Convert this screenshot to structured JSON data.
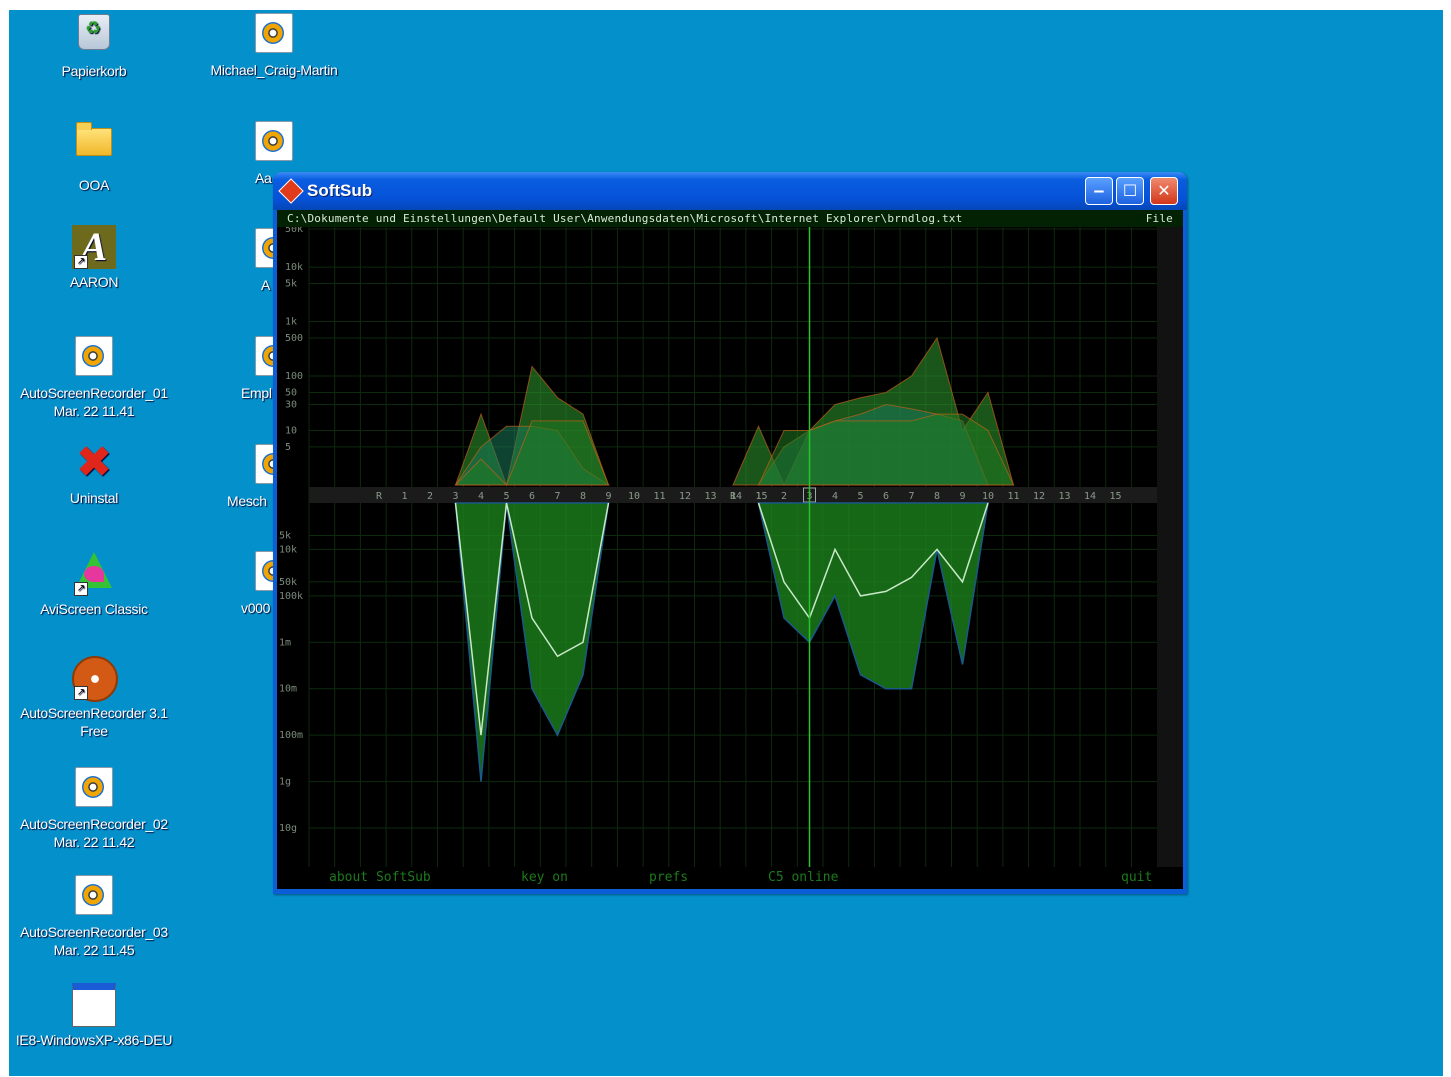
{
  "desktop": {
    "background": "#0490ca",
    "icons": [
      {
        "label": "Papierkorb",
        "icon": "recycle-bin-icon"
      },
      {
        "label": "OOA",
        "icon": "folder-icon"
      },
      {
        "label": "AARON",
        "icon": "aaron-icon"
      },
      {
        "label": "AutoScreenRecorder_01\nMar. 22 11.41",
        "icon": "media-file-icon"
      },
      {
        "label": "Uninstal",
        "icon": "uninstall-icon"
      },
      {
        "label": "AviScreen Classic",
        "icon": "aviscreen-icon"
      },
      {
        "label": "AutoScreenRecorder 3.1\nFree",
        "icon": "film-reel-icon"
      },
      {
        "label": "AutoScreenRecorder_02\nMar. 22 11.42",
        "icon": "media-file-icon"
      },
      {
        "label": "AutoScreenRecorder_03\nMar. 22 11.45",
        "icon": "media-file-icon"
      },
      {
        "label": "IE8-WindowsXP-x86-DEU",
        "icon": "application-icon"
      },
      {
        "label": "Michael_Craig-Martin",
        "icon": "media-file-icon"
      },
      {
        "label": "Aa",
        "icon": "media-file-icon"
      },
      {
        "label": "A",
        "icon": "media-file-icon"
      },
      {
        "label": "Empl",
        "icon": "media-file-icon"
      },
      {
        "label": "Mesch",
        "icon": "media-file-icon"
      },
      {
        "label": "v000",
        "icon": "media-file-icon"
      }
    ]
  },
  "window": {
    "title": "SoftSub",
    "minimize": "‒",
    "maximize": "☐",
    "close": "✕",
    "path": "C:\\Dokumente und Einstellungen\\Default User\\Anwendungsdaten\\Microsoft\\Internet Explorer\\brndlog.txt",
    "path_suffix": "File",
    "bottom": {
      "about": "about SoftSub",
      "key": "key on",
      "prefs": "prefs",
      "status": "C5 online",
      "quit": "quit"
    }
  },
  "chart_data": {
    "type": "area",
    "upper_axis_ticks": [
      "50k",
      "10k",
      "5k",
      "1k",
      "500",
      "100",
      "50",
      "30",
      "10",
      "5"
    ],
    "lower_axis_ticks": [
      "5k",
      "10k",
      "50k",
      "100k",
      "1m",
      "10m",
      "100m",
      "1g",
      "10g"
    ],
    "panels": [
      {
        "channel_labels": [
          "R",
          "1",
          "2",
          "3",
          "4",
          "5",
          "6",
          "7",
          "8",
          "9",
          "10",
          "11",
          "12",
          "13",
          "14",
          "15"
        ],
        "upper_series": [
          {
            "color": "#2f9a2f",
            "values": [
              0,
              0,
              0,
              0,
              20,
              0,
              150,
              40,
              20,
              0,
              0,
              0,
              0,
              0,
              0,
              0
            ]
          },
          {
            "color": "#1a7a5a",
            "values": [
              0,
              0,
              0,
              0,
              5,
              12,
              12,
              10,
              2,
              0,
              0,
              0,
              0,
              0,
              0,
              0
            ]
          },
          {
            "color": "#207a20",
            "values": [
              0,
              0,
              0,
              0,
              3,
              0,
              15,
              15,
              15,
              0,
              0,
              0,
              0,
              0,
              0,
              0
            ]
          }
        ],
        "lower_series": [
          {
            "color": "#1a5a8a",
            "values": [
              0,
              0,
              0,
              0,
              1000000000,
              0,
              10000000,
              100000000,
              5000000,
              0,
              0,
              0,
              0,
              0,
              0,
              0
            ]
          },
          {
            "color": "#c8e8c8",
            "values": [
              0,
              0,
              0,
              0,
              100000000,
              0,
              300000,
              2000000,
              1000000,
              0,
              0,
              0,
              0,
              0,
              0,
              0
            ]
          }
        ]
      },
      {
        "channel_labels": [
          "R",
          "1",
          "2",
          "3",
          "4",
          "5",
          "6",
          "7",
          "8",
          "9",
          "10",
          "11",
          "12",
          "13",
          "14",
          "15"
        ],
        "upper_series": [
          {
            "color": "#2f9a2f",
            "values": [
              0,
              12,
              0,
              10,
              30,
              40,
              50,
              100,
              500,
              10,
              50,
              0,
              0,
              0,
              0,
              0
            ]
          },
          {
            "color": "#1a7a5a",
            "values": [
              0,
              0,
              5,
              10,
              15,
              20,
              30,
              25,
              20,
              15,
              0,
              0,
              0,
              0,
              0,
              0
            ]
          },
          {
            "color": "#207a20",
            "values": [
              0,
              0,
              10,
              10,
              15,
              15,
              15,
              15,
              20,
              20,
              10,
              0,
              0,
              0,
              0,
              0
            ]
          }
        ],
        "lower_series": [
          {
            "color": "#1a5a8a",
            "values": [
              0,
              0,
              300000,
              1000000,
              100000,
              5000000,
              10000000,
              10000000,
              10000,
              3000000,
              0,
              0,
              0,
              0,
              0,
              0
            ]
          },
          {
            "color": "#c8e8c8",
            "values": [
              0,
              0,
              50000,
              300000,
              10000,
              100000,
              80000,
              40000,
              10000,
              50000,
              0,
              0,
              0,
              0,
              0,
              0
            ]
          }
        ]
      }
    ],
    "cursor_channel": "3",
    "grid": true
  }
}
